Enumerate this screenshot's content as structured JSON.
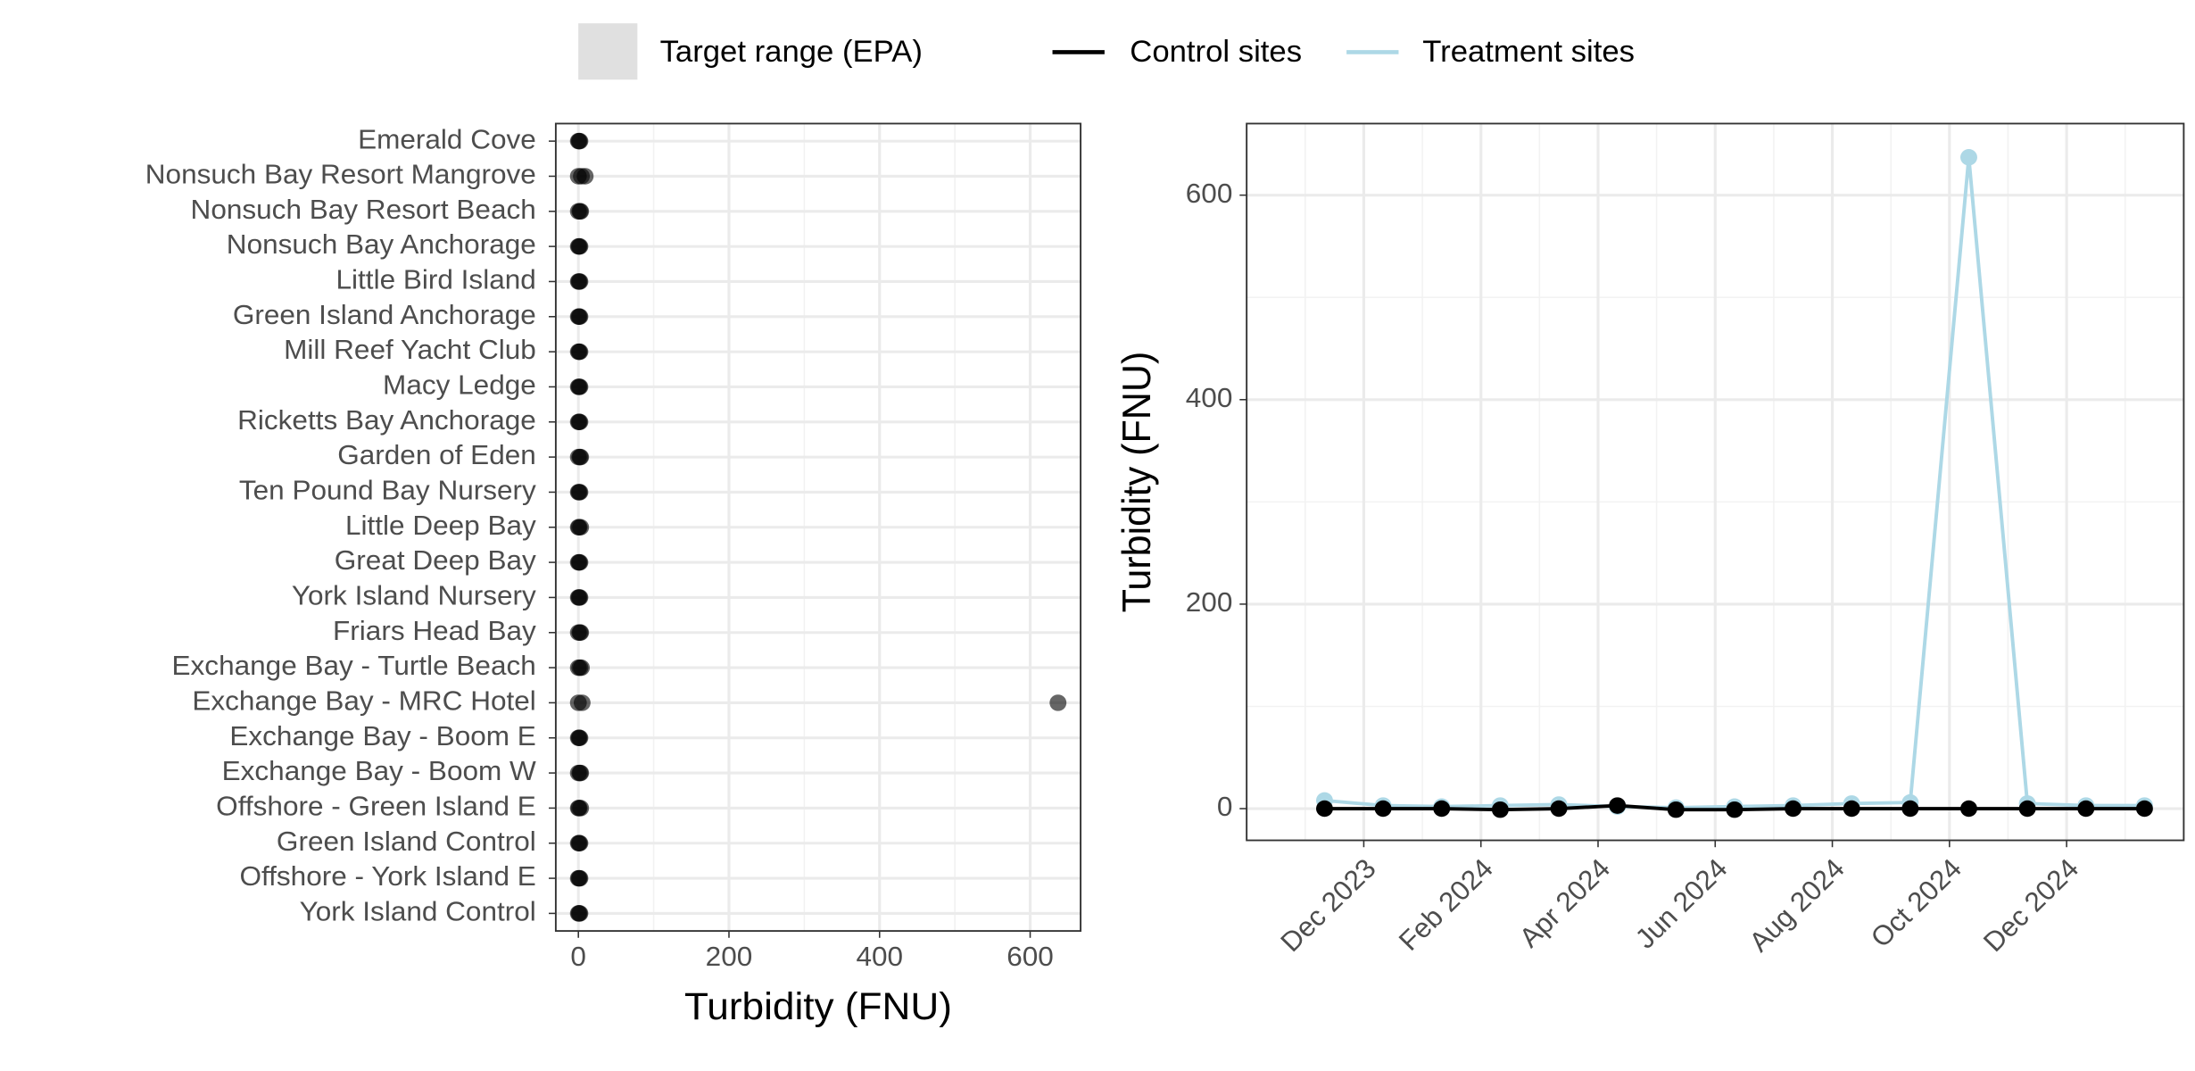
{
  "chart_data": [
    {
      "type": "dot",
      "xlabel": "Turbidity (FNU)",
      "color": "#000000",
      "grid": true,
      "categories": [
        "Emerald Cove",
        "Nonsuch Bay Resort Mangrove",
        "Nonsuch Bay Resort Beach",
        "Nonsuch Bay Anchorage",
        "Little Bird Island",
        "Green Island Anchorage",
        "Mill Reef Yacht Club",
        "Macy Ledge",
        "Ricketts Bay Anchorage",
        "Garden of Eden",
        "Ten Pound Bay Nursery",
        "Little Deep Bay",
        "Great Deep Bay",
        "York Island Nursery",
        "Friars Head Bay",
        "Exchange Bay - Turtle Beach",
        "Exchange Bay - MRC Hotel",
        "Exchange Bay - Boom E",
        "Exchange Bay - Boom W",
        "Offshore - Green Island E",
        "Green Island Control",
        "Offshore - York Island E",
        "York Island Control"
      ],
      "values": [
        [
          0,
          1,
          2
        ],
        [
          0,
          4,
          9
        ],
        [
          0,
          2,
          3
        ],
        [
          0,
          1,
          2
        ],
        [
          0,
          1,
          2
        ],
        [
          0,
          1,
          2
        ],
        [
          0,
          1,
          2
        ],
        [
          0,
          1,
          2
        ],
        [
          0,
          1,
          2
        ],
        [
          0,
          2,
          3
        ],
        [
          0,
          1,
          2
        ],
        [
          0,
          1,
          3
        ],
        [
          0,
          1,
          2
        ],
        [
          0,
          1,
          2
        ],
        [
          0,
          2,
          3
        ],
        [
          0,
          2,
          4
        ],
        [
          0,
          5,
          637
        ],
        [
          0,
          1,
          2
        ],
        [
          0,
          2,
          3
        ],
        [
          0,
          1,
          3
        ],
        [
          0,
          1,
          2
        ],
        [
          0,
          1,
          2
        ],
        [
          0,
          1,
          2
        ]
      ],
      "xlim": [
        -30,
        667
      ],
      "xticks": [
        0,
        200,
        400,
        600
      ]
    },
    {
      "type": "line",
      "ylabel": "Turbidity (FNU)",
      "grid": true,
      "target_range": {
        "name": "Target range (EPA)",
        "color": "#e0e0e0"
      },
      "x": [
        "2023-11",
        "2023-12",
        "2024-01",
        "2024-02",
        "2024-03",
        "2024-04",
        "2024-05",
        "2024-06",
        "2024-07",
        "2024-08",
        "2024-09",
        "2024-10",
        "2024-11",
        "2024-12",
        "2025-01"
      ],
      "series": [
        {
          "name": "Control sites",
          "color": "#000000",
          "values": [
            0,
            0,
            0,
            -1,
            0,
            3,
            -1,
            -1,
            0,
            0,
            0,
            0,
            0,
            0,
            0
          ]
        },
        {
          "name": "Treatment sites",
          "color": "#add8e6",
          "values": [
            8,
            3,
            2,
            3,
            4,
            2,
            1,
            2,
            3,
            5,
            6,
            637,
            5,
            3,
            3
          ]
        }
      ],
      "xlim": [
        "2023-10",
        "2025-02"
      ],
      "xticks": [
        {
          "value": "2023-12",
          "label": "Dec 2023"
        },
        {
          "value": "2024-02",
          "label": "Feb 2024"
        },
        {
          "value": "2024-04",
          "label": "Apr 2024"
        },
        {
          "value": "2024-06",
          "label": "Jun 2024"
        },
        {
          "value": "2024-08",
          "label": "Aug 2024"
        },
        {
          "value": "2024-10",
          "label": "Oct 2024"
        },
        {
          "value": "2024-12",
          "label": "Dec 2024"
        }
      ],
      "ylim": [
        -31,
        670
      ],
      "yticks": [
        0,
        200,
        400,
        600
      ]
    }
  ]
}
